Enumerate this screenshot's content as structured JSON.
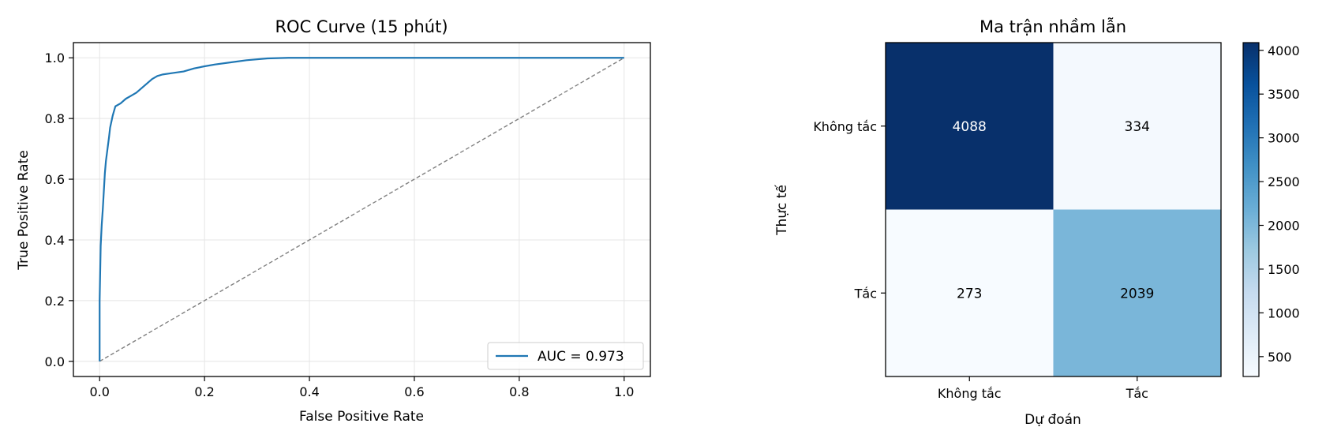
{
  "chart_data": [
    {
      "type": "line",
      "title": "ROC Curve (15 phút)",
      "xlabel": "False Positive Rate",
      "ylabel": "True Positive Rate",
      "xlim": [
        -0.05,
        1.05
      ],
      "ylim": [
        -0.05,
        1.05
      ],
      "xticks": [
        "0.0",
        "0.2",
        "0.4",
        "0.6",
        "0.8",
        "1.0"
      ],
      "yticks": [
        "0.0",
        "0.2",
        "0.4",
        "0.6",
        "0.8",
        "1.0"
      ],
      "grid": true,
      "legend_position": "lower right",
      "series": [
        {
          "name": "AUC = 0.973",
          "color": "#1f77b4",
          "style": "solid",
          "x": [
            0.0,
            0.0,
            0.002,
            0.004,
            0.006,
            0.008,
            0.01,
            0.012,
            0.015,
            0.018,
            0.02,
            0.025,
            0.03,
            0.04,
            0.05,
            0.06,
            0.07,
            0.08,
            0.09,
            0.1,
            0.11,
            0.12,
            0.14,
            0.16,
            0.18,
            0.2,
            0.22,
            0.25,
            0.28,
            0.32,
            0.36,
            0.4,
            0.5,
            0.6,
            0.7,
            0.8,
            0.9,
            1.0
          ],
          "y": [
            0.0,
            0.2,
            0.38,
            0.45,
            0.5,
            0.56,
            0.62,
            0.66,
            0.7,
            0.74,
            0.77,
            0.81,
            0.84,
            0.85,
            0.865,
            0.875,
            0.885,
            0.9,
            0.915,
            0.93,
            0.94,
            0.945,
            0.95,
            0.955,
            0.965,
            0.972,
            0.978,
            0.985,
            0.992,
            0.998,
            1.0,
            1.0,
            1.0,
            1.0,
            1.0,
            1.0,
            1.0,
            1.0
          ]
        },
        {
          "name": "",
          "color": "#808080",
          "style": "dashed",
          "x": [
            0.0,
            1.0
          ],
          "y": [
            0.0,
            1.0
          ]
        }
      ]
    },
    {
      "type": "heatmap",
      "title": "Ma trận nhầm lẫn",
      "xlabel": "Dự đoán",
      "ylabel": "Thực tế",
      "x_categories": [
        "Không tắc",
        "Tắc"
      ],
      "y_categories": [
        "Không tắc",
        "Tắc"
      ],
      "values": [
        [
          4088,
          334
        ],
        [
          273,
          2039
        ]
      ],
      "colormap": "Blues",
      "colorbar": {
        "min": 273,
        "max": 4088,
        "ticks": [
          "500",
          "1000",
          "1500",
          "2000",
          "2500",
          "3000",
          "3500",
          "4000"
        ]
      }
    }
  ]
}
